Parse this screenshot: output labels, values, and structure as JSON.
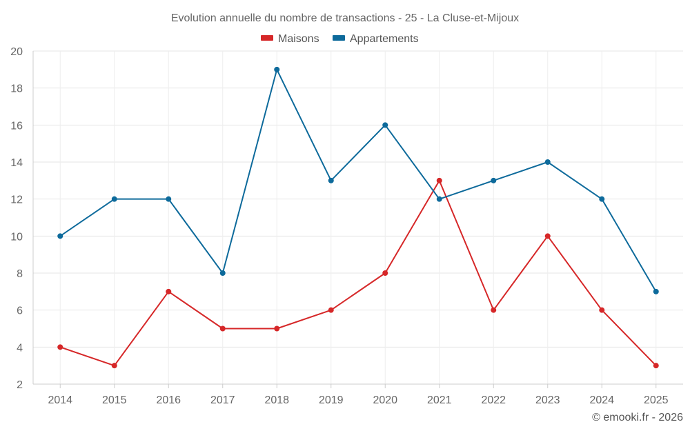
{
  "chart_data": {
    "type": "line",
    "title": "Evolution annuelle du nombre de transactions - 25 - La Cluse-et-Mijoux",
    "xlabel": "",
    "ylabel": "",
    "categories": [
      "2014",
      "2015",
      "2016",
      "2017",
      "2018",
      "2019",
      "2020",
      "2021",
      "2022",
      "2023",
      "2024",
      "2025"
    ],
    "ylim": [
      2,
      20
    ],
    "yticks": [
      2,
      4,
      6,
      8,
      10,
      12,
      14,
      16,
      18,
      20
    ],
    "grid": true,
    "legend_position": "top-center",
    "series": [
      {
        "name": "Maisons",
        "color": "#d62728",
        "values": [
          4,
          3,
          7,
          5,
          5,
          6,
          8,
          13,
          6,
          10,
          6,
          3
        ]
      },
      {
        "name": "Appartements",
        "color": "#0d6a9b",
        "values": [
          10,
          12,
          12,
          8,
          19,
          13,
          16,
          12,
          13,
          14,
          12,
          7
        ]
      }
    ]
  },
  "credit": "© emooki.fr - 2026"
}
